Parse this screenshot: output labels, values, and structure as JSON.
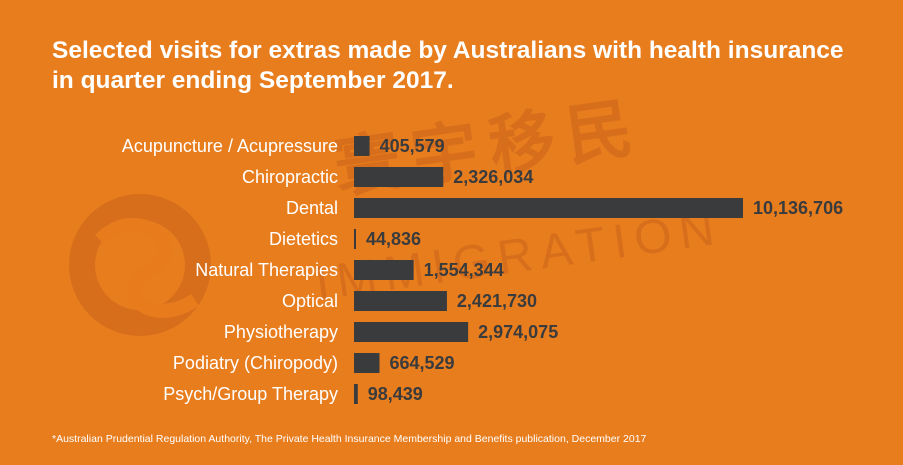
{
  "chart_data": {
    "type": "bar",
    "orientation": "horizontal",
    "title": "Selected visits for extras made by Australians with health insurance in quarter ending September 2017.",
    "categories": [
      "Acupuncture / Acupressure",
      "Chiropractic",
      "Dental",
      "Dietetics",
      "Natural Therapies",
      "Optical",
      "Physiotherapy",
      "Podiatry (Chiropody)",
      "Psych/Group Therapy"
    ],
    "values": [
      405579,
      2326034,
      10136706,
      44836,
      1554344,
      2421730,
      2974075,
      664529,
      98439
    ],
    "data_labels": [
      "405,579",
      "2,326,034",
      "10,136,706",
      "44,836",
      "1,554,344",
      "2,421,730",
      "2,974,075",
      "664,529",
      "98,439"
    ],
    "xlim": [
      0,
      10136706
    ],
    "grid": false,
    "legend": "none"
  },
  "footnote": "*Australian Prudential Regulation Authority, The Private Health Insurance Membership and Benefits publication, December 2017",
  "watermark": {
    "chinese": "寰宇移民",
    "english": "IMMIGRATION"
  },
  "colors": {
    "background": "#e87d1e",
    "bar": "#3a3b3d",
    "category_text": "#ffffff",
    "value_text": "#3a3b3d",
    "title_text": "#ffffff",
    "watermark": "#c9631a"
  }
}
